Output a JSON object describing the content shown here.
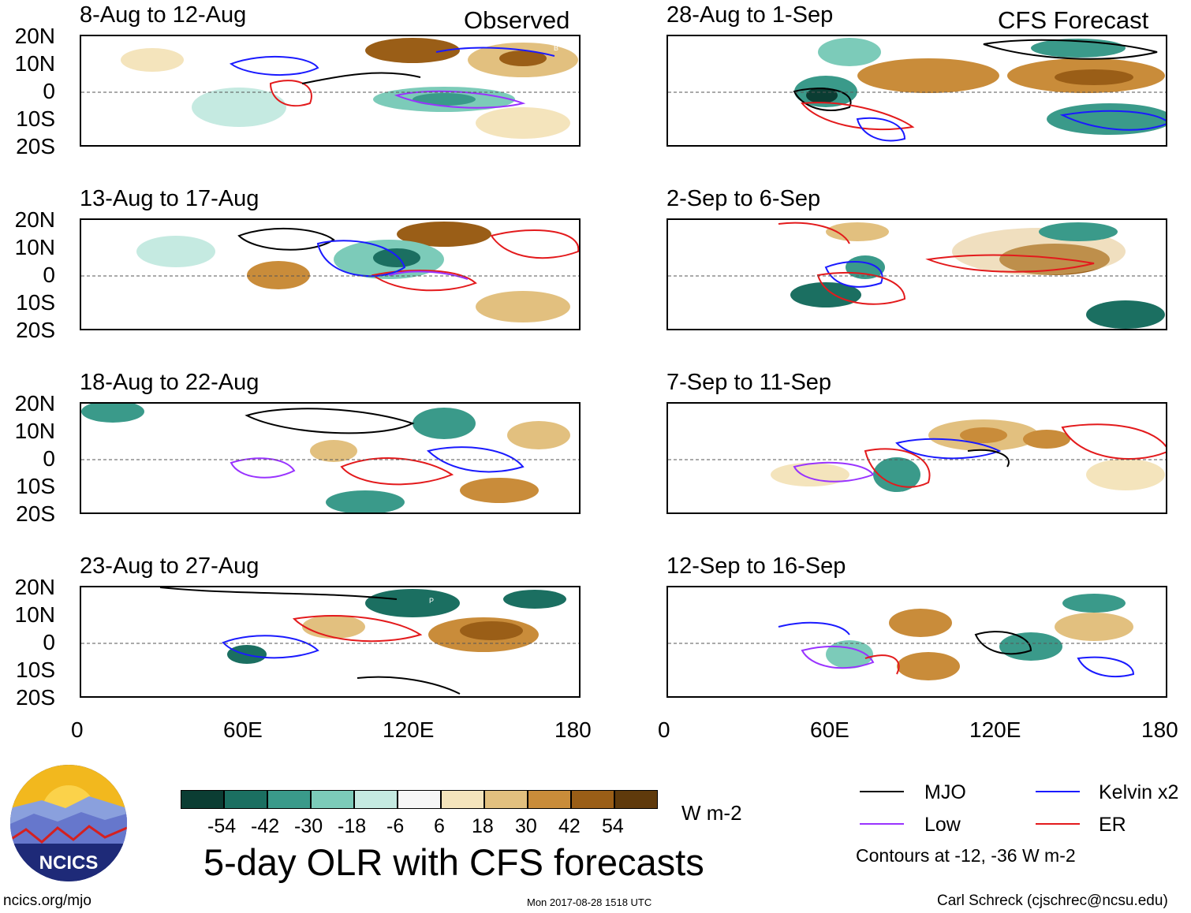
{
  "observed_label": "Observed",
  "forecast_label": "CFS Forecast",
  "lat_labels": [
    "20N",
    "10N",
    "0",
    "10S",
    "20S"
  ],
  "lon_labels": [
    "0",
    "60E",
    "120E",
    "180"
  ],
  "panels": [
    {
      "title": "8-Aug to 12-Aug"
    },
    {
      "title": "13-Aug to 17-Aug"
    },
    {
      "title": "18-Aug to 22-Aug"
    },
    {
      "title": "23-Aug to 27-Aug"
    },
    {
      "title": "28-Aug to 1-Sep"
    },
    {
      "title": "2-Sep to 6-Sep"
    },
    {
      "title": "7-Sep to 11-Sep"
    },
    {
      "title": "12-Sep to 16-Sep"
    }
  ],
  "colorbar": {
    "colors": [
      "#0b3d33",
      "#1b6f61",
      "#3a9a8a",
      "#7ccbb9",
      "#c5eae1",
      "#f6f6f6",
      "#f4e4bc",
      "#e2c07f",
      "#c98c3a",
      "#9a5e17",
      "#5f3a0c"
    ],
    "labels": [
      "-54",
      "-42",
      "-30",
      "-18",
      "-6",
      "6",
      "18",
      "30",
      "42",
      "54"
    ],
    "units": "W m-2"
  },
  "main_title": "5-day OLR with CFS forecasts",
  "legend": {
    "mjo": {
      "label": "MJO",
      "color": "#000000"
    },
    "kelvin": {
      "label": "Kelvin x2",
      "color": "#1a1aff"
    },
    "low": {
      "label": "Low",
      "color": "#9933ff"
    },
    "er": {
      "label": "ER",
      "color": "#e31a1c"
    },
    "contours_note": "Contours at -12, -36 W m-2"
  },
  "logo_text": "NCICS",
  "footer": {
    "url": "ncics.org/mjo",
    "timestamp": "Mon 2017-08-28 1518 UTC",
    "credit": "Carl Schreck (cjschrec@ncsu.edu)"
  },
  "tc_markers": [
    "B",
    "P"
  ]
}
